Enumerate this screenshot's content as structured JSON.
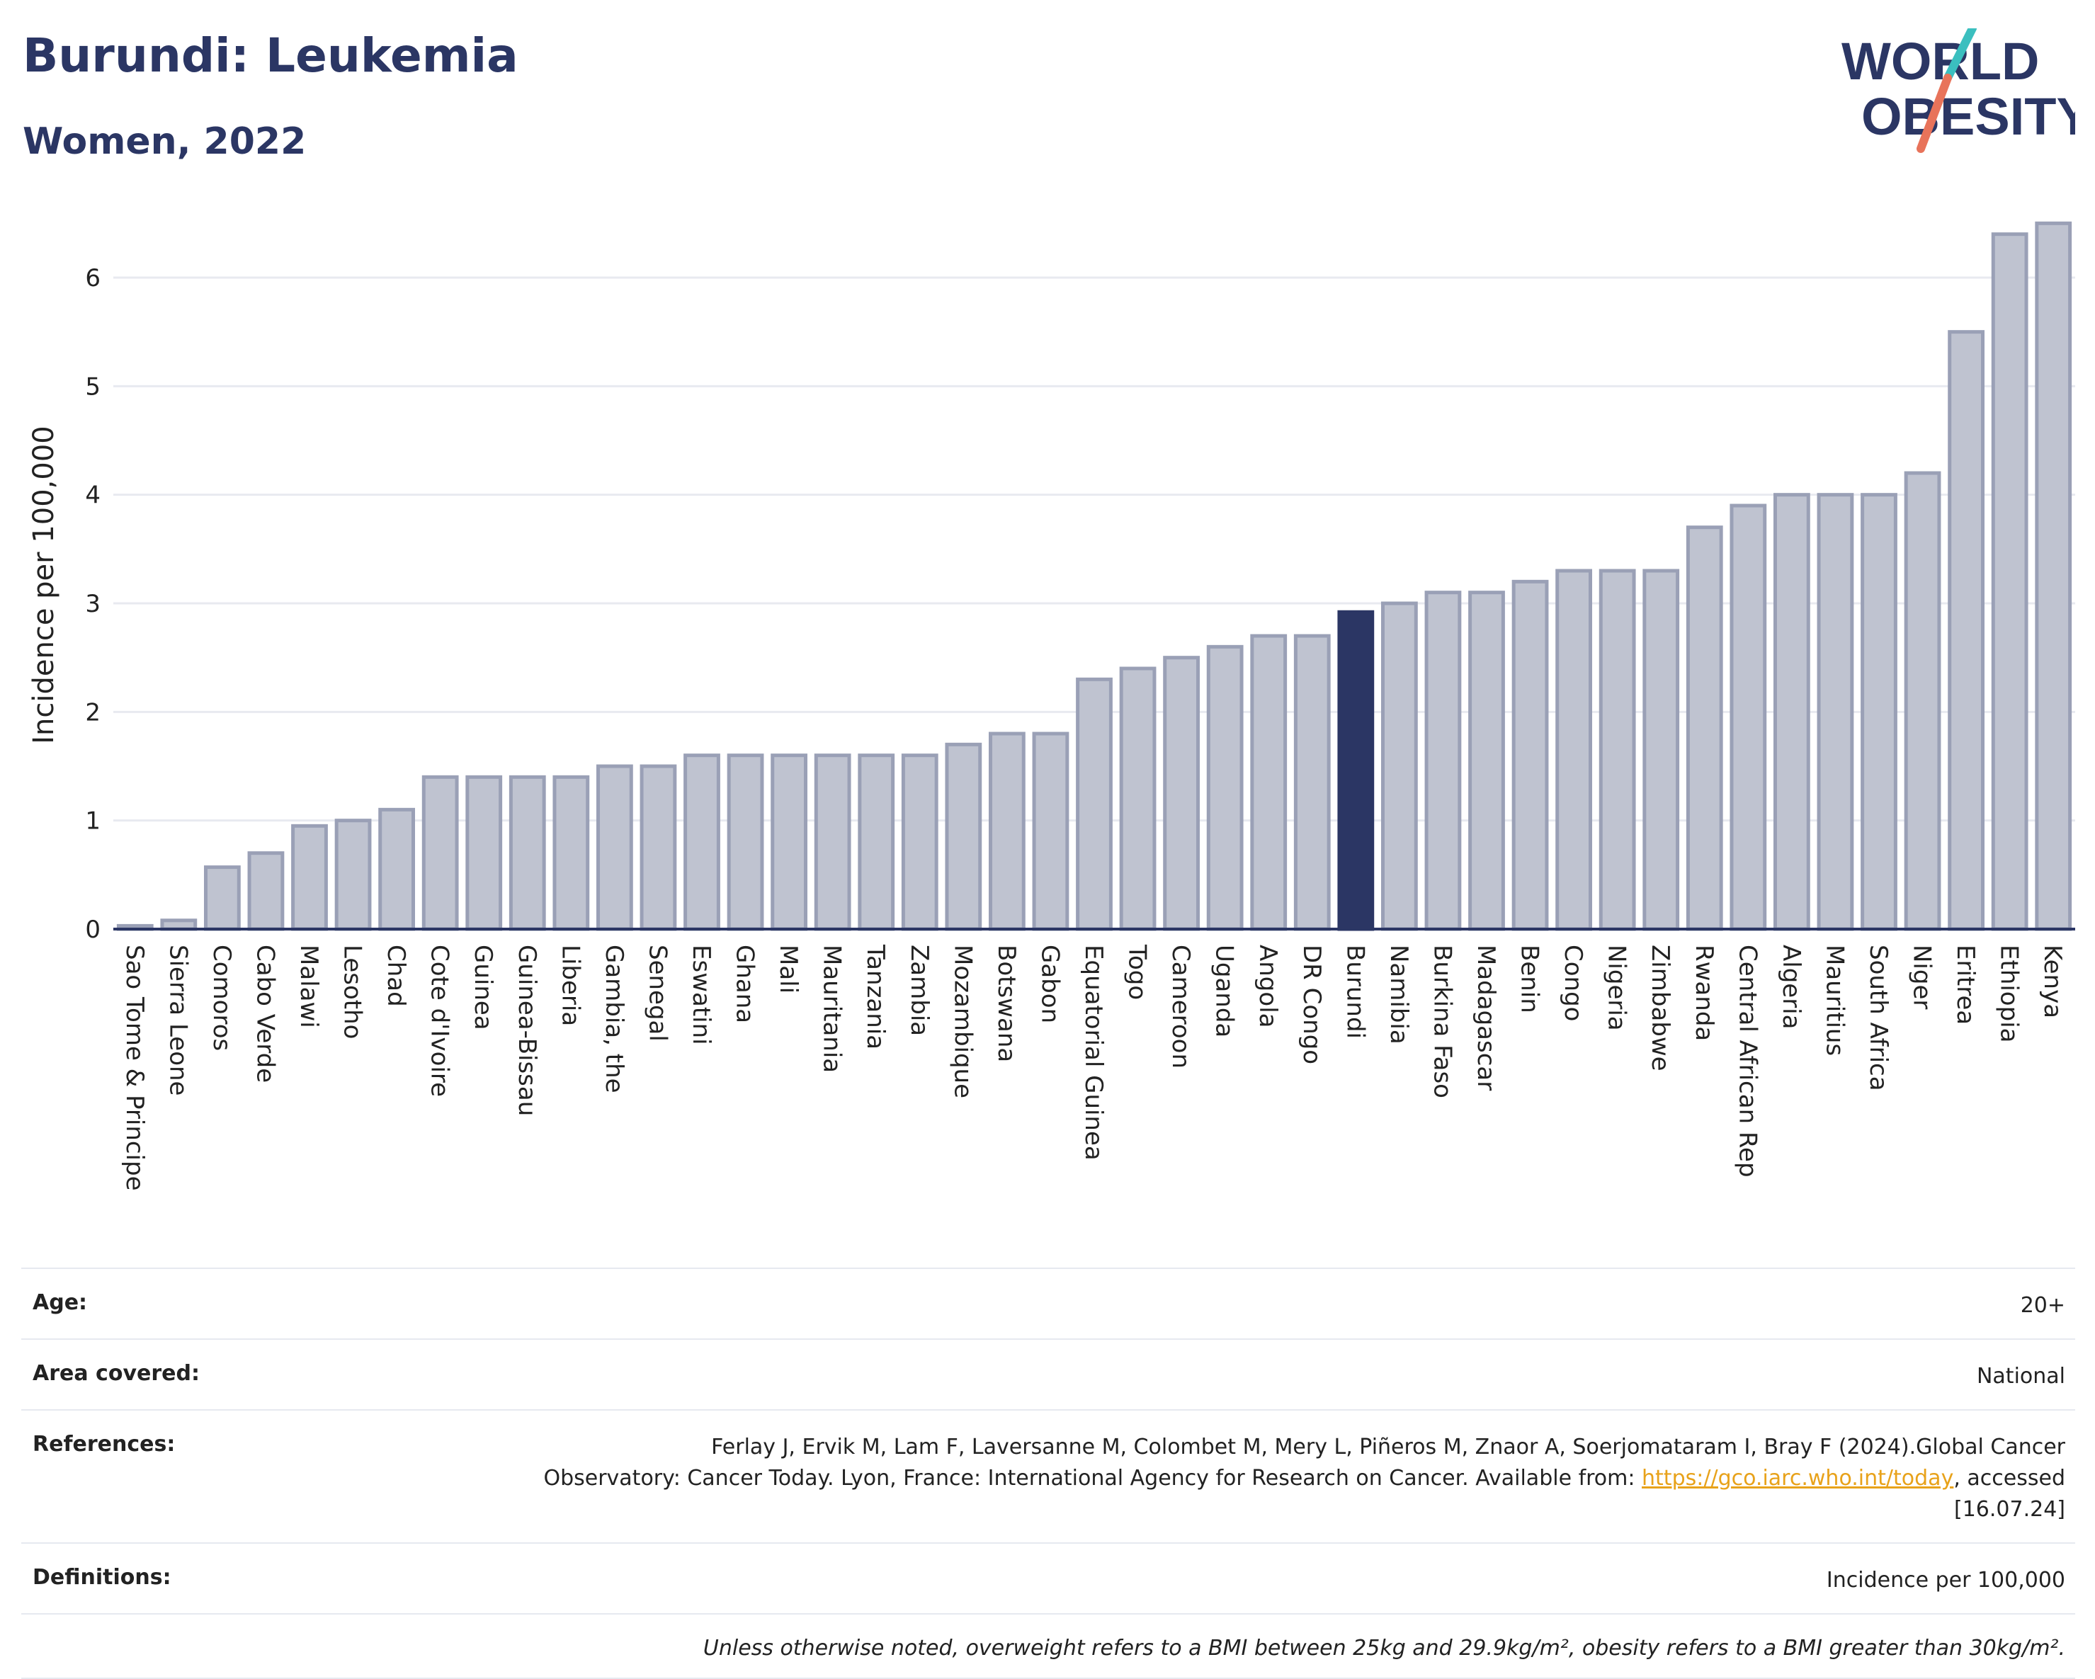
{
  "header": {
    "title": "Burundi: Leukemia",
    "subtitle": "Women, 2022"
  },
  "logo": {
    "line1": "WORLD",
    "line2": "OBESITY"
  },
  "colors": {
    "bar": "#bfc3d0",
    "bar_stroke": "#9aa0b6",
    "highlight": "#2b3664",
    "grid": "#e8eaf0",
    "axis": "#2b3664",
    "logo_teal": "#3bbfbf",
    "logo_coral": "#e8735a"
  },
  "chart_data": {
    "type": "bar",
    "ylabel": "Incidence per 100,000",
    "ylim": [
      0,
      6.6
    ],
    "yticks": [
      "0",
      "1",
      "2",
      "3",
      "4",
      "5",
      "6"
    ],
    "grid": true,
    "highlight": "Burundi",
    "categories": [
      "Sao Tome & Principe",
      "Sierra Leone",
      "Comoros",
      "Cabo Verde",
      "Malawi",
      "Lesotho",
      "Chad",
      "Cote d'Ivoire",
      "Guinea",
      "Guinea-Bissau",
      "Liberia",
      "Gambia, the",
      "Senegal",
      "Eswatini",
      "Ghana",
      "Mali",
      "Mauritania",
      "Tanzania",
      "Zambia",
      "Mozambique",
      "Botswana",
      "Gabon",
      "Equatorial Guinea",
      "Togo",
      "Cameroon",
      "Uganda",
      "Angola",
      "DR Congo",
      "Burundi",
      "Namibia",
      "Burkina Faso",
      "Madagascar",
      "Benin",
      "Congo",
      "Nigeria",
      "Zimbabwe",
      "Rwanda",
      "Central African Rep",
      "Algeria",
      "Mauritius",
      "South Africa",
      "Niger",
      "Eritrea",
      "Ethiopia",
      "Kenya"
    ],
    "values": [
      0.03,
      0.08,
      0.57,
      0.7,
      0.95,
      1.0,
      1.1,
      1.4,
      1.4,
      1.4,
      1.4,
      1.5,
      1.5,
      1.6,
      1.6,
      1.6,
      1.6,
      1.6,
      1.6,
      1.7,
      1.8,
      1.8,
      2.3,
      2.4,
      2.5,
      2.6,
      2.7,
      2.7,
      2.92,
      3.0,
      3.1,
      3.1,
      3.2,
      3.3,
      3.3,
      3.3,
      3.7,
      3.9,
      4.0,
      4.0,
      4.0,
      4.2,
      5.5,
      6.4,
      6.5
    ]
  },
  "meta": {
    "age_label": "Age:",
    "age_value": "20+",
    "area_label": "Area covered:",
    "area_value": "National",
    "references_label": "References:",
    "references_line1": "Ferlay J, Ervik M, Lam F, Laversanne M, Colombet M, Mery L, Piñeros M, Znaor A, Soerjomataram I, Bray F (2024).Global Cancer",
    "references_line2": "Observatory: Cancer Today. Lyon, France: International Agency for Research on Cancer. Available from: ",
    "references_link": "https://gco.iarc.who.int/today",
    "references_line3": ", accessed [16.07.24]",
    "definitions_label": "Definitions:",
    "definitions_value": "Incidence per 100,000",
    "note": "Unless otherwise noted, overweight refers to a BMI between 25kg and 29.9kg/m², obesity refers to a BMI greater than 30kg/m²."
  }
}
